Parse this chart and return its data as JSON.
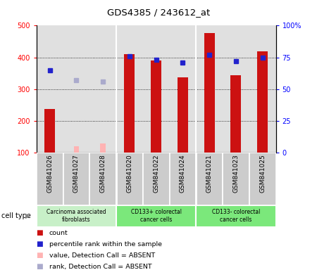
{
  "title": "GDS4385 / 243612_at",
  "samples": [
    "GSM841026",
    "GSM841027",
    "GSM841028",
    "GSM841020",
    "GSM841022",
    "GSM841024",
    "GSM841021",
    "GSM841023",
    "GSM841025"
  ],
  "count": [
    237,
    null,
    null,
    410,
    390,
    338,
    477,
    344,
    418
  ],
  "count_absent": [
    null,
    120,
    128,
    null,
    null,
    null,
    null,
    null,
    null
  ],
  "percentile_rank": [
    65,
    null,
    null,
    76,
    73,
    71,
    77,
    72,
    75
  ],
  "rank_absent": [
    null,
    57,
    56,
    null,
    null,
    null,
    null,
    null,
    null
  ],
  "cell_type_labels": [
    "Carcinoma associated\nfibroblasts",
    "CD133+ colorectal\ncancer cells",
    "CD133- colorectal\ncancer cells"
  ],
  "cell_type_colors": [
    "#c8f0c8",
    "#7be87b",
    "#7be87b"
  ],
  "cell_type_ranges": [
    [
      0,
      3
    ],
    [
      3,
      6
    ],
    [
      6,
      9
    ]
  ],
  "ylim_left": [
    100,
    500
  ],
  "ylim_right": [
    0,
    100
  ],
  "yticks_left": [
    100,
    200,
    300,
    400,
    500
  ],
  "yticks_right": [
    0,
    25,
    50,
    75,
    100
  ],
  "ytick_labels_right": [
    "0",
    "25",
    "50",
    "75",
    "100%"
  ],
  "bar_color": "#cc1111",
  "bar_absent_color": "#ffb3b3",
  "dot_color": "#2222cc",
  "dot_absent_color": "#aaaacc",
  "bar_width": 0.4,
  "bg_color": "#ffffff",
  "plot_bg_color": "#e0e0e0",
  "label_bg_color": "#cccccc",
  "legend_items": [
    {
      "label": "count",
      "color": "#cc1111"
    },
    {
      "label": "percentile rank within the sample",
      "color": "#2222cc"
    },
    {
      "label": "value, Detection Call = ABSENT",
      "color": "#ffb3b3"
    },
    {
      "label": "rank, Detection Call = ABSENT",
      "color": "#aaaacc"
    }
  ]
}
